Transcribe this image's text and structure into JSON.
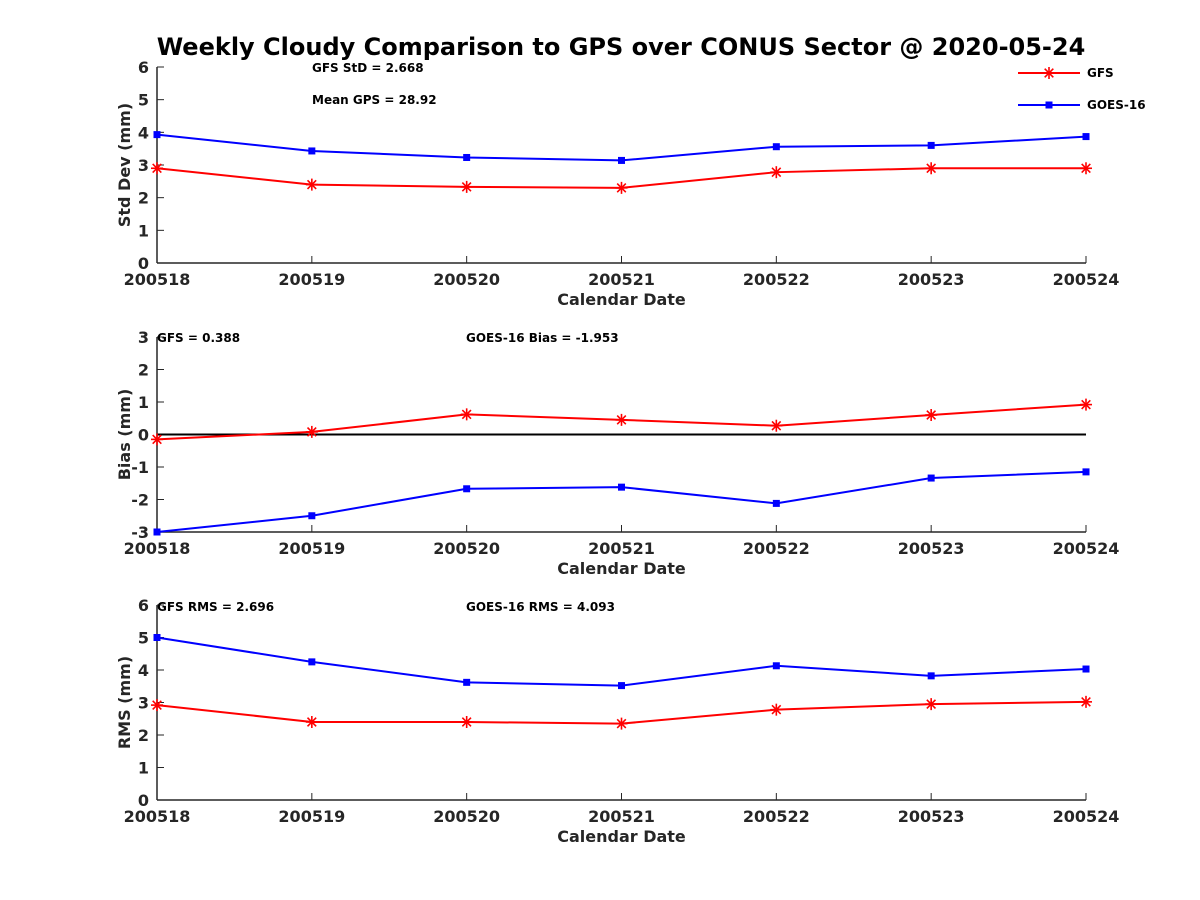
{
  "figure": {
    "title": "Weekly Cloudy Comparison to GPS over CONUS Sector @ 2020-05-24"
  },
  "legend": [
    {
      "name": "GFS",
      "color": "#ff0000",
      "marker": "asterisk"
    },
    {
      "name": "GOES-16",
      "color": "#0000ff",
      "marker": "square"
    }
  ],
  "chart_data": [
    {
      "type": "line",
      "categories": [
        "200518",
        "200519",
        "200520",
        "200521",
        "200522",
        "200523",
        "200524"
      ],
      "xlabel": "Calendar Date",
      "ylabel": "Std Dev (mm)",
      "ylim": [
        0,
        6
      ],
      "yticks": [
        "0",
        "1",
        "2",
        "3",
        "4",
        "5",
        "6"
      ],
      "zero_line": false,
      "series": [
        {
          "name": "GFS",
          "color": "#ff0000",
          "marker": "asterisk",
          "values": [
            2.9,
            2.4,
            2.33,
            2.3,
            2.78,
            2.9,
            2.9
          ]
        },
        {
          "name": "GOES-16",
          "color": "#0000ff",
          "marker": "square",
          "values": [
            3.93,
            3.43,
            3.23,
            3.14,
            3.56,
            3.6,
            3.87
          ]
        }
      ],
      "annotations": [
        "GFS StD = 2.668",
        "Mean GPS = 28.92"
      ]
    },
    {
      "type": "line",
      "categories": [
        "200518",
        "200519",
        "200520",
        "200521",
        "200522",
        "200523",
        "200524"
      ],
      "xlabel": "Calendar Date",
      "ylabel": "Bias (mm)",
      "ylim": [
        -3,
        3
      ],
      "yticks": [
        "-3",
        "-2",
        "-1",
        "0",
        "1",
        "2",
        "3"
      ],
      "zero_line": true,
      "series": [
        {
          "name": "GFS",
          "color": "#ff0000",
          "marker": "asterisk",
          "values": [
            -0.15,
            0.08,
            0.62,
            0.45,
            0.27,
            0.6,
            0.92
          ]
        },
        {
          "name": "GOES-16",
          "color": "#0000ff",
          "marker": "square",
          "values": [
            -3.0,
            -2.5,
            -1.67,
            -1.62,
            -2.12,
            -1.34,
            -1.15
          ]
        }
      ],
      "annotations": [
        "GFS = 0.388",
        "GOES-16 Bias  = -1.953"
      ]
    },
    {
      "type": "line",
      "categories": [
        "200518",
        "200519",
        "200520",
        "200521",
        "200522",
        "200523",
        "200524"
      ],
      "xlabel": "Calendar Date",
      "ylabel": "RMS (mm)",
      "ylim": [
        0,
        6
      ],
      "yticks": [
        "0",
        "1",
        "2",
        "3",
        "4",
        "5",
        "6"
      ],
      "zero_line": false,
      "series": [
        {
          "name": "GFS",
          "color": "#ff0000",
          "marker": "asterisk",
          "values": [
            2.92,
            2.4,
            2.4,
            2.35,
            2.78,
            2.95,
            3.02
          ]
        },
        {
          "name": "GOES-16",
          "color": "#0000ff",
          "marker": "square",
          "values": [
            5.0,
            4.25,
            3.62,
            3.52,
            4.13,
            3.82,
            4.03
          ]
        }
      ],
      "annotations": [
        "GFS RMS = 2.696",
        "GOES-16 RMS = 4.093"
      ]
    }
  ]
}
